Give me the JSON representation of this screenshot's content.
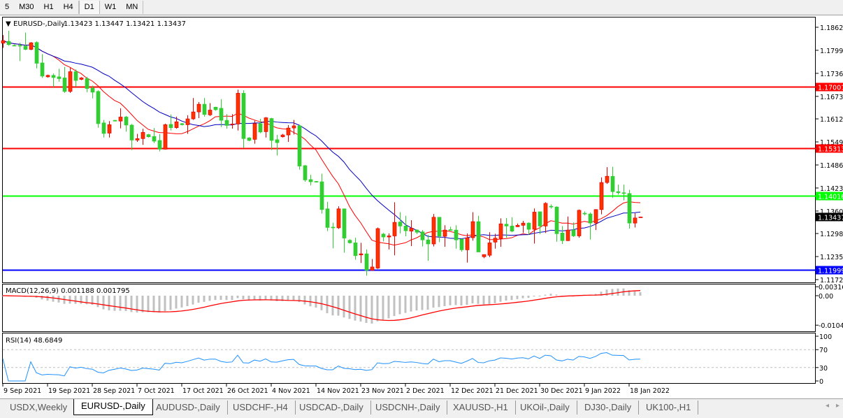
{
  "toolbar": {
    "timeframes": [
      "5",
      "M30",
      "H1",
      "H4",
      "D1",
      "W1",
      "MN"
    ],
    "active": "D1"
  },
  "chart": {
    "legend_arrow_icon": "triangle-down-icon",
    "symbol": "EURUSD-,Daily",
    "ohlc_text": "1.13423 1.13447 1.13421 1.13437",
    "price_ticks": [
      "1.18625",
      "1.17995",
      "1.17365",
      "1.16735",
      "1.16120",
      "1.15490",
      "1.14860",
      "1.14230",
      "1.13600",
      "1.12985",
      "1.12355",
      "1.11725"
    ],
    "hlines": [
      {
        "price": 1.17001,
        "label": "1.17001",
        "color": "#ff0000"
      },
      {
        "price": 1.15313,
        "label": "1.15313",
        "color": "#ff0000"
      },
      {
        "price": 1.14016,
        "label": "1.14016",
        "color": "#00ff00"
      },
      {
        "price": 1.11999,
        "label": "1.11999",
        "color": "#0000ff"
      }
    ],
    "current_price": {
      "price": 1.13437,
      "label": "1.13437",
      "color": "#000000"
    },
    "colors": {
      "bull": "#ff3300",
      "bear": "#32cd32",
      "ma_fast": "#ff0000",
      "ma_slow": "#0000c0"
    },
    "date_labels": [
      "9 Sep 2021",
      "19 Sep 2021",
      "28 Sep 2021",
      "7 Oct 2021",
      "17 Oct 2021",
      "26 Oct 2021",
      "4 Nov 2021",
      "14 Nov 2021",
      "23 Nov 2021",
      "2 Dec 2021",
      "12 Dec 2021",
      "21 Dec 2021",
      "30 Dec 2021",
      "9 Jan 2022",
      "18 Jan 2022"
    ]
  },
  "chart_data": {
    "type": "candlestick",
    "fields": [
      "open",
      "high",
      "low",
      "close"
    ],
    "ylim": [
      1.11725,
      1.18625
    ],
    "ohlc": [
      [
        1.1819,
        1.1841,
        1.1806,
        1.1826
      ],
      [
        1.1824,
        1.1853,
        1.1812,
        1.1815
      ],
      [
        1.1813,
        1.1816,
        1.1811,
        1.1812
      ],
      [
        1.1813,
        1.182,
        1.177,
        1.1811
      ],
      [
        1.1811,
        1.1848,
        1.18,
        1.1802
      ],
      [
        1.1802,
        1.1822,
        1.18,
        1.182
      ],
      [
        1.1821,
        1.1824,
        1.175,
        1.1764
      ],
      [
        1.1765,
        1.1789,
        1.1724,
        1.1729
      ],
      [
        1.1727,
        1.1733,
        1.1725,
        1.1731
      ],
      [
        1.1731,
        1.1736,
        1.1699,
        1.1725
      ],
      [
        1.1727,
        1.1749,
        1.1714,
        1.1722
      ],
      [
        1.1724,
        1.1754,
        1.1683,
        1.1687
      ],
      [
        1.1687,
        1.1752,
        1.1683,
        1.1741
      ],
      [
        1.1741,
        1.1747,
        1.17,
        1.1717
      ],
      [
        1.172,
        1.1726,
        1.1718,
        1.1724
      ],
      [
        1.1722,
        1.1727,
        1.1685,
        1.1695
      ],
      [
        1.1696,
        1.1703,
        1.1668,
        1.1685
      ],
      [
        1.1687,
        1.169,
        1.1588,
        1.1599
      ],
      [
        1.1601,
        1.1609,
        1.1561,
        1.1572
      ],
      [
        1.1573,
        1.1606,
        1.1561,
        1.1596
      ],
      [
        1.1608,
        1.1609,
        1.1605,
        1.1606
      ],
      [
        1.1606,
        1.1641,
        1.1586,
        1.1617
      ],
      [
        1.1617,
        1.162,
        1.1577,
        1.1595
      ],
      [
        1.1595,
        1.1598,
        1.1527,
        1.1554
      ],
      [
        1.1554,
        1.1571,
        1.1549,
        1.1558
      ],
      [
        1.1558,
        1.1585,
        1.1541,
        1.1575
      ],
      [
        1.1569,
        1.1571,
        1.1561,
        1.1563
      ],
      [
        1.1564,
        1.1587,
        1.1546,
        1.1551
      ],
      [
        1.1553,
        1.157,
        1.1523,
        1.1529
      ],
      [
        1.1529,
        1.1599,
        1.1528,
        1.1596
      ],
      [
        1.1597,
        1.1624,
        1.158,
        1.1588
      ],
      [
        1.1588,
        1.1618,
        1.1585,
        1.1604
      ],
      [
        1.1599,
        1.1601,
        1.1594,
        1.1596
      ],
      [
        1.1596,
        1.1622,
        1.1571,
        1.1612
      ],
      [
        1.1612,
        1.1669,
        1.1609,
        1.1631
      ],
      [
        1.1631,
        1.1658,
        1.1614,
        1.1652
      ],
      [
        1.1652,
        1.1669,
        1.1618,
        1.1624
      ],
      [
        1.1623,
        1.1655,
        1.162,
        1.1636
      ],
      [
        1.1644,
        1.1645,
        1.1634,
        1.1637
      ],
      [
        1.1641,
        1.1666,
        1.159,
        1.1608
      ],
      [
        1.1608,
        1.1625,
        1.1585,
        1.1594
      ],
      [
        1.1596,
        1.1625,
        1.1585,
        1.1598
      ],
      [
        1.1598,
        1.1692,
        1.158,
        1.1682
      ],
      [
        1.1682,
        1.169,
        1.1532,
        1.1558
      ],
      [
        1.156,
        1.1562,
        1.1551,
        1.1553
      ],
      [
        1.1556,
        1.1607,
        1.1544,
        1.1599
      ],
      [
        1.1599,
        1.1612,
        1.1573,
        1.1576
      ],
      [
        1.1577,
        1.1617,
        1.1561,
        1.1615
      ],
      [
        1.1613,
        1.1615,
        1.1527,
        1.1553
      ],
      [
        1.1555,
        1.1568,
        1.1512,
        1.1547
      ],
      [
        1.1563,
        1.1571,
        1.1561,
        1.1568
      ],
      [
        1.1568,
        1.1595,
        1.1549,
        1.1587
      ],
      [
        1.1587,
        1.1609,
        1.1569,
        1.1593
      ],
      [
        1.1593,
        1.1596,
        1.1473,
        1.1483
      ],
      [
        1.1484,
        1.1486,
        1.144,
        1.1445
      ],
      [
        1.1446,
        1.1459,
        1.143,
        1.144
      ],
      [
        1.1441,
        1.1442,
        1.1438,
        1.1439
      ],
      [
        1.144,
        1.1462,
        1.1353,
        1.1364
      ],
      [
        1.1366,
        1.1385,
        1.1305,
        1.1315
      ],
      [
        1.1316,
        1.1328,
        1.1258,
        1.1314
      ],
      [
        1.1314,
        1.1373,
        1.1311,
        1.1366
      ],
      [
        1.1366,
        1.1367,
        1.1246,
        1.1286
      ],
      [
        1.128,
        1.1283,
        1.1271,
        1.1273
      ],
      [
        1.1273,
        1.1287,
        1.1227,
        1.1238
      ],
      [
        1.124,
        1.1273,
        1.1218,
        1.1243
      ],
      [
        1.1243,
        1.1255,
        1.1183,
        1.1198
      ],
      [
        1.1198,
        1.1229,
        1.1197,
        1.1207
      ],
      [
        1.1204,
        1.1315,
        1.1202,
        1.1312
      ],
      [
        1.1297,
        1.13,
        1.1277,
        1.1289
      ],
      [
        1.1289,
        1.1299,
        1.1255,
        1.1292
      ],
      [
        1.1292,
        1.1384,
        1.1239,
        1.1329
      ],
      [
        1.133,
        1.1357,
        1.1299,
        1.1319
      ],
      [
        1.1319,
        1.1347,
        1.1291,
        1.1306
      ],
      [
        1.1305,
        1.1335,
        1.1264,
        1.1313
      ],
      [
        1.1308,
        1.131,
        1.1297,
        1.1302
      ],
      [
        1.1303,
        1.1308,
        1.1263,
        1.1281
      ],
      [
        1.1281,
        1.1295,
        1.1224,
        1.127
      ],
      [
        1.127,
        1.1352,
        1.1263,
        1.1343
      ],
      [
        1.1343,
        1.1343,
        1.1275,
        1.1291
      ],
      [
        1.1291,
        1.1321,
        1.1262,
        1.1308
      ],
      [
        1.1309,
        1.1317,
        1.1307,
        1.1308
      ],
      [
        1.1308,
        1.1321,
        1.1257,
        1.1281
      ],
      [
        1.1283,
        1.1284,
        1.1249,
        1.1254
      ],
      [
        1.1254,
        1.1299,
        1.1219,
        1.1287
      ],
      [
        1.1287,
        1.1357,
        1.1279,
        1.1331
      ],
      [
        1.1331,
        1.1347,
        1.1248,
        1.1248
      ],
      [
        1.1235,
        1.1241,
        1.1231,
        1.1241
      ],
      [
        1.1239,
        1.1302,
        1.1234,
        1.1273
      ],
      [
        1.1275,
        1.1298,
        1.1257,
        1.1286
      ],
      [
        1.1285,
        1.134,
        1.1262,
        1.1325
      ],
      [
        1.1324,
        1.1341,
        1.1287,
        1.1319
      ],
      [
        1.1319,
        1.1343,
        1.1302,
        1.1305
      ],
      [
        1.1317,
        1.1326,
        1.1316,
        1.1321
      ],
      [
        1.1321,
        1.1333,
        1.13,
        1.1327
      ],
      [
        1.1327,
        1.1329,
        1.1295,
        1.131
      ],
      [
        1.131,
        1.1367,
        1.1271,
        1.1357
      ],
      [
        1.1358,
        1.1358,
        1.1297,
        1.1319
      ],
      [
        1.1319,
        1.1384,
        1.13,
        1.1381
      ],
      [
        1.1373,
        1.1378,
        1.1367,
        1.1371
      ],
      [
        1.1371,
        1.1373,
        1.1276,
        1.1298
      ],
      [
        1.13,
        1.1319,
        1.127,
        1.1279
      ],
      [
        1.1279,
        1.1345,
        1.1278,
        1.1308
      ],
      [
        1.1308,
        1.1329,
        1.1289,
        1.1292
      ],
      [
        1.1292,
        1.1364,
        1.1287,
        1.1362
      ],
      [
        1.1354,
        1.1359,
        1.1348,
        1.1352
      ],
      [
        1.1352,
        1.1356,
        1.1282,
        1.1327
      ],
      [
        1.1327,
        1.1365,
        1.1308,
        1.1364
      ],
      [
        1.1364,
        1.1452,
        1.1351,
        1.1438
      ],
      [
        1.1438,
        1.148,
        1.1434,
        1.1455
      ],
      [
        1.1455,
        1.1481,
        1.1396,
        1.1413
      ],
      [
        1.1413,
        1.1432,
        1.1405,
        1.141
      ],
      [
        1.141,
        1.1432,
        1.1389,
        1.1408
      ],
      [
        1.1408,
        1.1418,
        1.1312,
        1.1327
      ],
      [
        1.1327,
        1.1354,
        1.1315,
        1.1341
      ],
      [
        1.13423,
        1.13447,
        1.13421,
        1.13437
      ]
    ]
  },
  "macd": {
    "label": "MACD(12,26,9) 0.001188 0.001795",
    "ticks": [
      "0.003165",
      "0.00",
      "-0.01043"
    ],
    "ylim": [
      -0.01043,
      0.003165
    ],
    "hist_color": "#c0c0c0",
    "signal_color": "#ff0000"
  },
  "rsi": {
    "label": "RSI(14) 48.6849",
    "ticks": [
      "100",
      "70",
      "30",
      "0"
    ],
    "levels": [
      70,
      30
    ],
    "line_color": "#1e90ff"
  },
  "tabs": {
    "items": [
      "USDX,Weekly",
      "EURUSD-,Daily",
      "AUDUSD-,Daily",
      "USDCHF-,H4",
      "USDCAD-,Daily",
      "USDCNH-,Daily",
      "XAUUSD-,H1",
      "UKOil-,Daily",
      "DJ30-,Daily",
      "UK100-,H1"
    ],
    "active": "EURUSD-,Daily",
    "scroll_left_icon": "◂",
    "scroll_right_icon": "▸"
  }
}
